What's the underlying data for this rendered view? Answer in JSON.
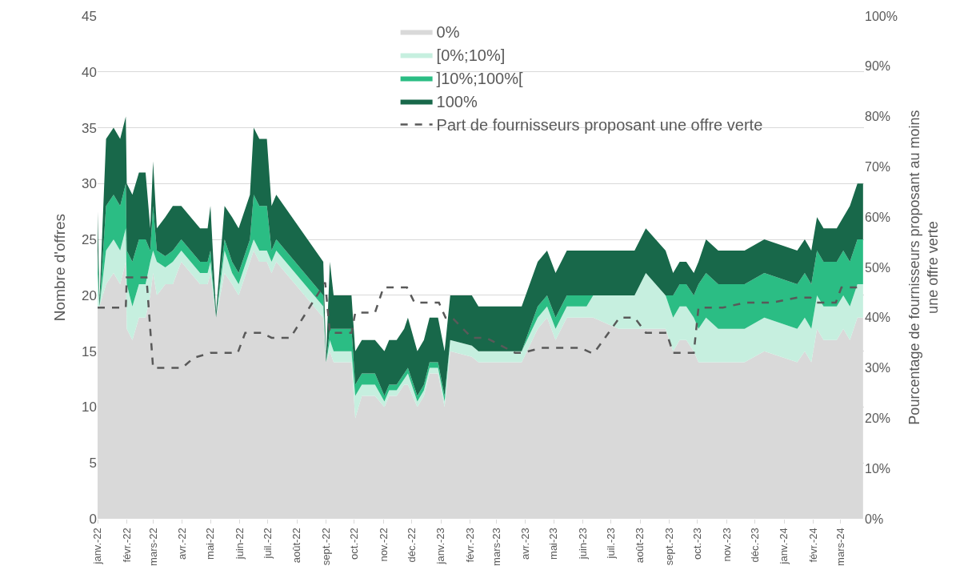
{
  "chart_data": {
    "type": "area",
    "stacked": true,
    "ylabel": "Nombre d'offres",
    "y2label": "Pourcentage de fournisseurs proposant au moins une offre verte",
    "x": [
      "2022-01-01",
      "2022-01-03",
      "2022-01-10",
      "2022-01-18",
      "2022-01-25",
      "2022-01-31",
      "2022-02-01",
      "2022-02-07",
      "2022-02-14",
      "2022-02-21",
      "2022-02-26",
      "2022-03-01",
      "2022-03-05",
      "2022-03-14",
      "2022-03-22",
      "2022-03-31",
      "2022-04-10",
      "2022-04-20",
      "2022-04-28",
      "2022-05-01",
      "2022-05-07",
      "2022-05-16",
      "2022-05-24",
      "2022-05-31",
      "2022-06-08",
      "2022-06-12",
      "2022-06-16",
      "2022-06-22",
      "2022-06-30",
      "2022-07-05",
      "2022-07-10",
      "2022-08-29",
      "2022-09-01",
      "2022-09-05",
      "2022-09-09",
      "2022-09-28",
      "2022-10-02",
      "2022-10-09",
      "2022-10-23",
      "2022-11-02",
      "2022-11-07",
      "2022-11-15",
      "2022-11-23",
      "2022-11-27",
      "2022-12-07",
      "2022-12-14",
      "2022-12-20",
      "2022-12-29",
      "2023-01-05",
      "2023-01-11",
      "2023-02-03",
      "2023-02-10",
      "2023-03-28",
      "2023-04-14",
      "2023-04-24",
      "2023-05-03",
      "2023-05-15",
      "2023-06-05",
      "2023-06-12",
      "2023-07-09",
      "2023-07-26",
      "2023-08-07",
      "2023-08-28",
      "2023-09-05",
      "2023-09-12",
      "2023-09-19",
      "2023-09-27",
      "2023-10-02",
      "2023-10-10",
      "2023-10-23",
      "2023-11-20",
      "2023-12-11",
      "2024-01-15",
      "2024-01-23",
      "2024-01-30",
      "2024-02-05",
      "2024-02-12",
      "2024-02-26",
      "2024-03-04",
      "2024-03-11",
      "2024-03-19",
      "2024-03-25"
    ],
    "series": [
      {
        "name": "0%",
        "color": "#d9d9d9",
        "values": [
          19,
          19,
          21,
          22,
          21,
          23,
          17,
          16,
          18,
          18,
          20,
          22,
          20,
          21,
          21,
          23,
          22,
          21,
          21,
          22,
          18,
          22,
          21,
          20,
          22,
          23,
          24,
          23,
          23,
          22,
          23,
          18,
          14,
          15,
          14,
          14,
          9,
          11,
          11,
          10,
          11,
          11,
          12,
          12,
          10,
          11,
          13,
          13,
          10,
          15,
          14.5,
          14,
          14,
          17,
          18,
          16,
          18,
          18,
          18,
          17,
          17,
          17,
          17,
          15,
          16,
          16,
          15,
          14,
          14,
          14,
          14,
          15,
          14,
          15,
          14,
          17,
          16,
          16,
          17,
          16,
          18,
          18
        ]
      },
      {
        "name": "[0%;10%]",
        "color": "#c6efdf",
        "values": [
          3,
          0,
          3,
          3,
          3,
          3,
          4,
          3,
          3,
          3,
          3,
          2,
          3,
          1.5,
          2,
          1,
          1,
          1,
          1,
          1,
          0,
          2,
          1,
          1,
          1,
          1,
          1,
          1,
          1,
          1,
          1,
          1,
          0,
          1,
          1,
          1,
          2,
          1,
          1,
          0.5,
          0.5,
          0.5,
          0.5,
          1,
          0.5,
          0.5,
          0.5,
          0.5,
          0.5,
          1,
          1,
          1,
          1,
          1,
          1,
          1,
          1,
          1,
          2,
          3,
          3,
          5,
          3,
          3,
          3,
          3,
          3,
          3,
          4,
          3,
          3,
          3,
          3,
          3,
          3,
          3,
          3,
          3,
          3,
          3,
          3,
          3
        ]
      },
      {
        "name": "]10%;100%[",
        "color": "#2bbd84",
        "values": [
          2,
          0,
          4,
          4,
          4,
          4,
          3,
          4,
          4,
          4,
          1,
          4,
          1,
          1,
          1,
          1,
          1,
          1,
          1,
          1,
          0,
          1,
          1,
          1,
          1,
          1,
          4,
          4,
          4,
          1,
          1,
          1,
          0,
          1,
          2,
          2,
          1,
          1,
          1,
          0.5,
          0.5,
          0.5,
          0.5,
          0.5,
          0.5,
          0.5,
          0.5,
          0.5,
          0.5,
          0,
          0,
          0,
          0,
          1,
          1,
          1,
          1,
          1,
          0,
          0,
          0,
          0,
          0,
          2,
          2,
          2,
          2,
          4,
          4,
          4,
          4,
          4,
          4,
          4,
          4,
          4,
          4,
          4,
          4,
          4,
          4,
          4
        ]
      },
      {
        "name": "100%",
        "color": "#18684a",
        "values": [
          3.5,
          0.5,
          6,
          6,
          6,
          6,
          6,
          6,
          6,
          6,
          2,
          4,
          2,
          3.5,
          4,
          3,
          3,
          3,
          3,
          4,
          0.5,
          3,
          4,
          4,
          4,
          4,
          6,
          6,
          6,
          4,
          4,
          3,
          0.5,
          6,
          3,
          3,
          3,
          3,
          3,
          4,
          4,
          4,
          4,
          4.5,
          4,
          4,
          4,
          4,
          4,
          4,
          4.5,
          4,
          4,
          4,
          4,
          4,
          4,
          4,
          4,
          4,
          4,
          4,
          4,
          2,
          2,
          2,
          2,
          2,
          3,
          3,
          3,
          3,
          3,
          3,
          3,
          3,
          3,
          3,
          3,
          5,
          5,
          5
        ]
      },
      {
        "name": "Part de fournisseurs proposant une offre verte",
        "type": "line",
        "axis": "y2",
        "color": "#595959",
        "line_style": "dashed",
        "x": [
          "2022-01-01",
          "2022-01-31",
          "2022-02-01",
          "2022-02-22",
          "2022-03-01",
          "2022-04-01",
          "2022-04-13",
          "2022-05-01",
          "2022-05-30",
          "2022-06-07",
          "2022-06-24",
          "2022-07-05",
          "2022-07-25",
          "2022-08-31",
          "2022-09-05",
          "2022-09-28",
          "2022-10-02",
          "2022-10-23",
          "2022-11-01",
          "2022-11-26",
          "2022-12-04",
          "2022-12-30",
          "2023-01-06",
          "2023-01-13",
          "2023-02-03",
          "2023-02-18",
          "2023-03-21",
          "2023-03-29",
          "2023-04-18",
          "2023-05-04",
          "2023-05-29",
          "2023-06-10",
          "2023-06-13",
          "2023-07-10",
          "2023-07-26",
          "2023-08-07",
          "2023-08-29",
          "2023-09-05",
          "2023-09-27",
          "2023-10-02",
          "2023-10-28",
          "2023-11-21",
          "2023-12-19",
          "2024-01-15",
          "2024-01-29",
          "2024-02-05",
          "2024-02-25",
          "2024-03-02",
          "2024-03-25"
        ],
        "values": [
          42,
          42,
          48,
          48,
          30,
          30,
          32,
          33,
          33,
          37,
          37,
          36,
          36,
          47,
          37,
          37,
          41,
          41,
          46,
          46,
          43,
          43,
          40,
          40,
          36,
          36,
          33,
          33,
          34,
          34,
          34,
          33,
          33,
          40,
          40,
          37,
          37,
          33,
          33,
          42,
          42,
          43,
          43,
          44,
          44,
          43,
          43,
          46,
          46
        ]
      }
    ],
    "xlim": [
      "2022-01-01",
      "2024-03-26"
    ],
    "xticks": [
      {
        "value": "2022-01-01",
        "label": "janv.-22"
      },
      {
        "value": "2022-02-01",
        "label": "févr.-22"
      },
      {
        "value": "2022-03-01",
        "label": "mars-22"
      },
      {
        "value": "2022-04-01",
        "label": "avr.-22"
      },
      {
        "value": "2022-05-01",
        "label": "mai-22"
      },
      {
        "value": "2022-06-01",
        "label": "juin-22"
      },
      {
        "value": "2022-07-01",
        "label": "juil.-22"
      },
      {
        "value": "2022-08-01",
        "label": "août-22"
      },
      {
        "value": "2022-09-01",
        "label": "sept.-22"
      },
      {
        "value": "2022-10-01",
        "label": "oct.-22"
      },
      {
        "value": "2022-11-01",
        "label": "nov.-22"
      },
      {
        "value": "2022-12-01",
        "label": "déc.-22"
      },
      {
        "value": "2023-01-01",
        "label": "janv.-23"
      },
      {
        "value": "2023-02-01",
        "label": "févr.-23"
      },
      {
        "value": "2023-03-01",
        "label": "mars-23"
      },
      {
        "value": "2023-04-01",
        "label": "avr.-23"
      },
      {
        "value": "2023-05-01",
        "label": "mai-23"
      },
      {
        "value": "2023-06-01",
        "label": "juin-23"
      },
      {
        "value": "2023-07-01",
        "label": "juil.-23"
      },
      {
        "value": "2023-08-01",
        "label": "août-23"
      },
      {
        "value": "2023-09-01",
        "label": "sept.-23"
      },
      {
        "value": "2023-10-01",
        "label": "oct.-23"
      },
      {
        "value": "2023-11-01",
        "label": "nov.-23"
      },
      {
        "value": "2023-12-01",
        "label": "déc.-23"
      },
      {
        "value": "2024-01-01",
        "label": "janv.-24"
      },
      {
        "value": "2024-02-01",
        "label": "févr.-24"
      },
      {
        "value": "2024-03-01",
        "label": "mars-24"
      }
    ],
    "ylim": [
      0,
      45
    ],
    "yticks": [
      0,
      5,
      10,
      15,
      20,
      25,
      30,
      35,
      40,
      45
    ],
    "y2lim": [
      0,
      100
    ],
    "y2ticks": [
      {
        "value": 0,
        "label": "0%"
      },
      {
        "value": 10,
        "label": "10%"
      },
      {
        "value": 20,
        "label": "20%"
      },
      {
        "value": 30,
        "label": "30%"
      },
      {
        "value": 40,
        "label": "40%"
      },
      {
        "value": 50,
        "label": "50%"
      },
      {
        "value": 60,
        "label": "60%"
      },
      {
        "value": 70,
        "label": "70%"
      },
      {
        "value": 80,
        "label": "80%"
      },
      {
        "value": 90,
        "label": "90%"
      },
      {
        "value": 100,
        "label": "100%"
      }
    ],
    "grid": "y",
    "legend": "top"
  }
}
